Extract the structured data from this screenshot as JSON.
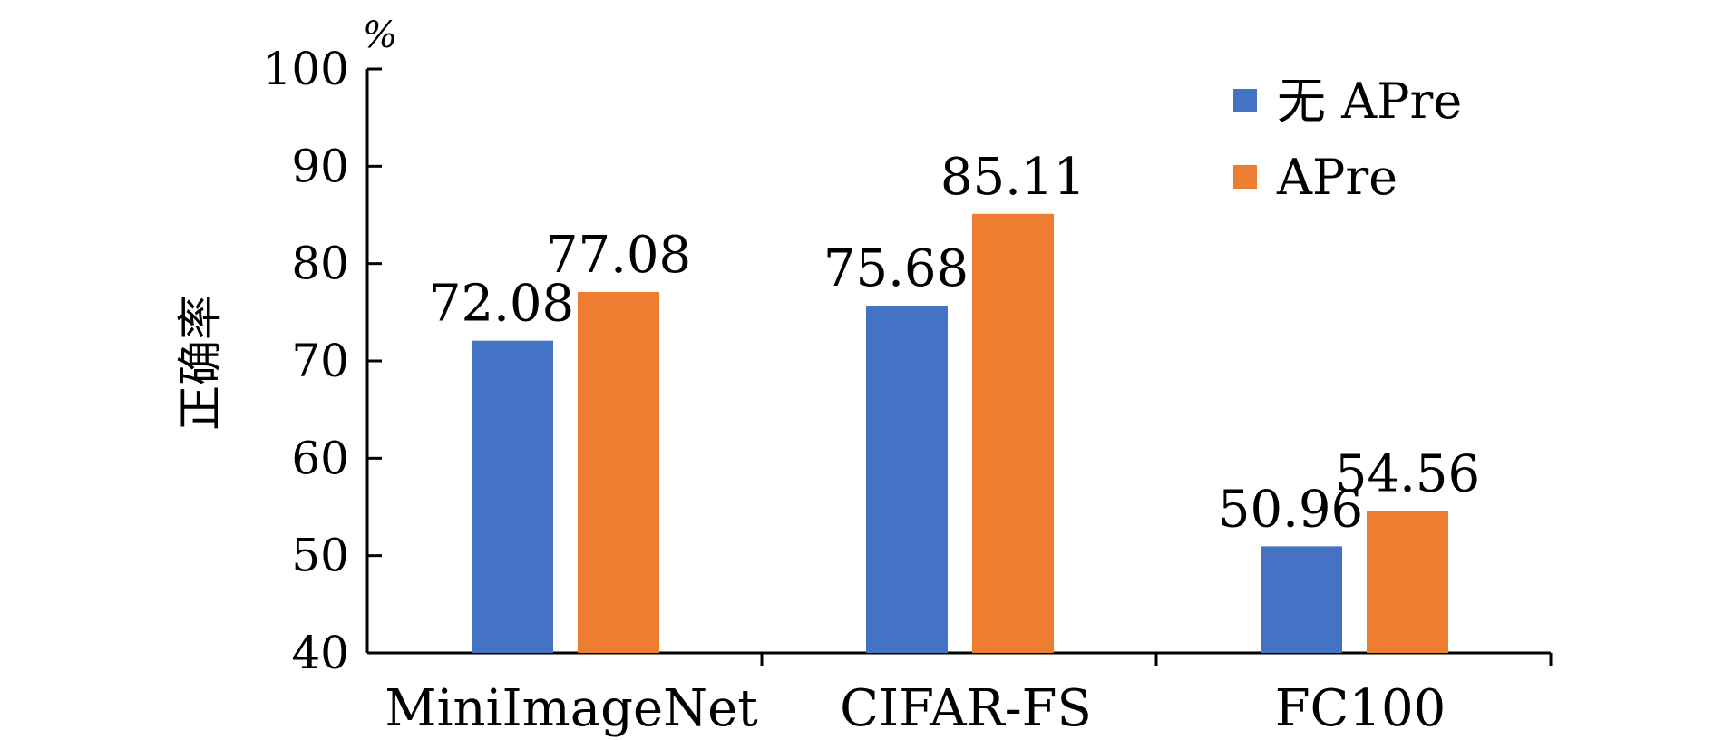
{
  "chart_data": {
    "type": "bar",
    "categories": [
      "MiniImageNet",
      "CIFAR-FS",
      "FC100"
    ],
    "series": [
      {
        "name": "无 APre",
        "values": [
          72.08,
          75.68,
          50.96
        ],
        "color": "#4472C4"
      },
      {
        "name": "APre",
        "values": [
          77.08,
          85.11,
          54.56
        ],
        "color": "#ED7D31"
      }
    ],
    "data_labels": [
      [
        "72.08",
        "75.68",
        "50.96"
      ],
      [
        "77.08",
        "85.11",
        "54.56"
      ]
    ],
    "xlabel": "",
    "ylabel": "正确率",
    "y_unit": "%",
    "ylim": [
      40,
      100
    ],
    "yticks": [
      "40",
      "50",
      "60",
      "70",
      "80",
      "90",
      "100"
    ],
    "grid": false,
    "legend_position": "top-right"
  }
}
